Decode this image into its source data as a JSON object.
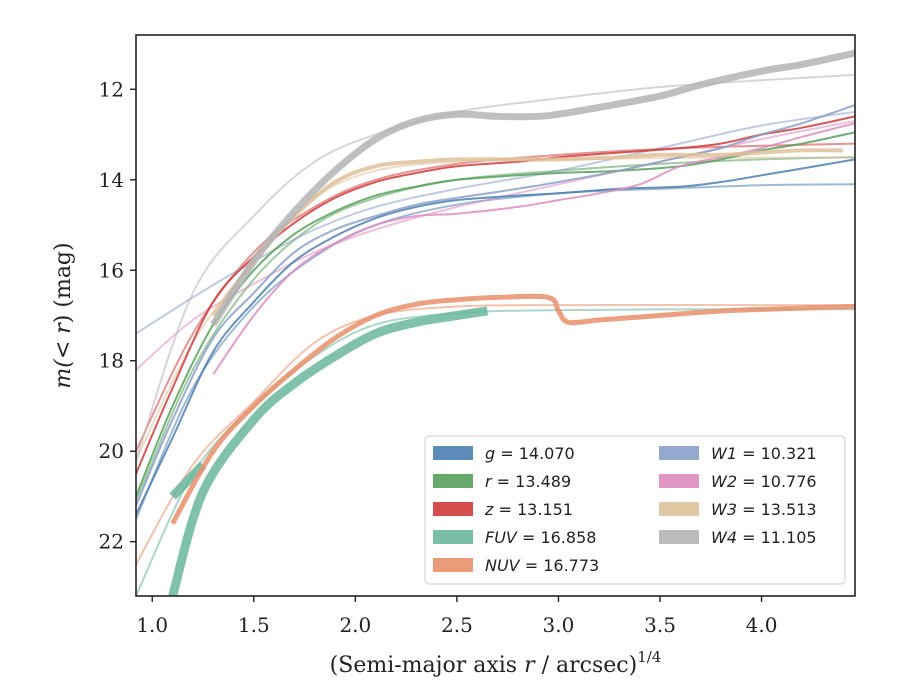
{
  "chart_data": {
    "type": "line",
    "title": "",
    "xlabel": "(Semi-major axis r / arcsec)",
    "xlabel_r": "r",
    "xlabel_pre": "(Semi-major axis ",
    "xlabel_post": " / arcsec)",
    "xlabel_sup": "1/4",
    "ylabel_pre": "m(",
    "ylabel_mid": "< r",
    "ylabel_post": ") (mag)",
    "xlim": [
      0.92,
      4.46
    ],
    "ylim": [
      23.2,
      10.8
    ],
    "y_inverted": true,
    "xticks": [
      "1.0",
      "1.5",
      "2.0",
      "2.5",
      "3.0",
      "3.5",
      "4.0"
    ],
    "xtick_values": [
      1.0,
      1.5,
      2.0,
      2.5,
      3.0,
      3.5,
      4.0
    ],
    "yticks": [
      "12",
      "14",
      "16",
      "18",
      "20",
      "22"
    ],
    "ytick_values": [
      12,
      14,
      16,
      18,
      20,
      22
    ],
    "grid": false,
    "legend_position": "lower-right",
    "series": [
      {
        "name": "g",
        "value": "14.070",
        "color": "#4c7fb0",
        "data_w": 2.0,
        "data": [
          [
            0.92,
            21.4
          ],
          [
            1.1,
            19.7
          ],
          [
            1.3,
            17.8
          ],
          [
            1.5,
            16.7
          ],
          [
            1.7,
            15.8
          ],
          [
            1.9,
            15.25
          ],
          [
            2.1,
            14.85
          ],
          [
            2.3,
            14.6
          ],
          [
            2.5,
            14.45
          ],
          [
            2.8,
            14.35
          ],
          [
            3.0,
            14.3
          ],
          [
            3.3,
            14.2
          ],
          [
            3.6,
            14.15
          ],
          [
            3.8,
            14.05
          ],
          [
            4.0,
            13.9
          ],
          [
            4.2,
            13.75
          ],
          [
            4.46,
            13.55
          ]
        ],
        "model": [
          [
            0.92,
            21.5
          ],
          [
            1.2,
            18.6
          ],
          [
            1.5,
            16.8
          ],
          [
            1.8,
            15.7
          ],
          [
            2.1,
            15.0
          ],
          [
            2.5,
            14.55
          ],
          [
            3.0,
            14.3
          ],
          [
            3.5,
            14.2
          ],
          [
            4.0,
            14.12
          ],
          [
            4.46,
            14.1
          ]
        ]
      },
      {
        "name": "r",
        "value": "13.489",
        "color": "#55a05a",
        "data_w": 2.0,
        "data": [
          [
            0.92,
            21.0
          ],
          [
            1.1,
            19.0
          ],
          [
            1.3,
            17.2
          ],
          [
            1.5,
            16.0
          ],
          [
            1.7,
            15.2
          ],
          [
            1.9,
            14.7
          ],
          [
            2.1,
            14.35
          ],
          [
            2.3,
            14.15
          ],
          [
            2.5,
            14.0
          ],
          [
            2.8,
            13.9
          ],
          [
            3.0,
            13.85
          ],
          [
            3.3,
            13.8
          ],
          [
            3.6,
            13.7
          ],
          [
            3.8,
            13.55
          ],
          [
            4.0,
            13.35
          ],
          [
            4.2,
            13.2
          ],
          [
            4.46,
            12.95
          ]
        ],
        "model": [
          [
            0.92,
            21.1
          ],
          [
            1.2,
            18.2
          ],
          [
            1.5,
            16.2
          ],
          [
            1.8,
            15.0
          ],
          [
            2.1,
            14.4
          ],
          [
            2.5,
            14.0
          ],
          [
            3.0,
            13.8
          ],
          [
            3.5,
            13.65
          ],
          [
            4.0,
            13.55
          ],
          [
            4.46,
            13.5
          ]
        ]
      },
      {
        "name": "z",
        "value": "13.151",
        "color": "#d03a3a",
        "data_w": 2.0,
        "data": [
          [
            0.92,
            20.5
          ],
          [
            1.1,
            18.6
          ],
          [
            1.3,
            16.7
          ],
          [
            1.5,
            15.7
          ],
          [
            1.7,
            14.95
          ],
          [
            1.9,
            14.4
          ],
          [
            2.1,
            14.05
          ],
          [
            2.3,
            13.85
          ],
          [
            2.5,
            13.7
          ],
          [
            2.8,
            13.6
          ],
          [
            3.0,
            13.5
          ],
          [
            3.3,
            13.4
          ],
          [
            3.6,
            13.3
          ],
          [
            3.8,
            13.2
          ],
          [
            4.0,
            13.0
          ],
          [
            4.2,
            12.85
          ],
          [
            4.46,
            12.6
          ]
        ],
        "model": [
          [
            0.92,
            20.0
          ],
          [
            1.2,
            17.4
          ],
          [
            1.5,
            15.6
          ],
          [
            1.8,
            14.6
          ],
          [
            2.1,
            14.0
          ],
          [
            2.5,
            13.65
          ],
          [
            3.0,
            13.45
          ],
          [
            3.5,
            13.32
          ],
          [
            4.0,
            13.25
          ],
          [
            4.46,
            13.2
          ]
        ]
      },
      {
        "name": "FUV",
        "value": "16.858",
        "color": "#69b69c",
        "data_w": 9,
        "data": [
          [
            1.1,
            23.2
          ],
          [
            1.25,
            20.9
          ],
          [
            1.5,
            19.3
          ],
          [
            1.7,
            18.5
          ],
          [
            1.9,
            17.9
          ],
          [
            2.1,
            17.4
          ],
          [
            2.3,
            17.15
          ],
          [
            2.5,
            17.0
          ],
          [
            2.65,
            16.9
          ]
        ],
        "band_lower": [
          [
            1.1,
            21.0
          ],
          [
            1.25,
            20.3
          ]
        ],
        "model": [
          [
            0.92,
            23.2
          ],
          [
            1.2,
            20.5
          ],
          [
            1.5,
            19.0
          ],
          [
            1.8,
            17.9
          ],
          [
            2.1,
            17.2
          ],
          [
            2.5,
            16.95
          ],
          [
            3.0,
            16.88
          ],
          [
            4.0,
            16.86
          ],
          [
            4.46,
            16.86
          ]
        ]
      },
      {
        "name": "NUV",
        "value": "16.773",
        "color": "#e8916b",
        "data_w": 5,
        "data": [
          [
            1.1,
            21.6
          ],
          [
            1.3,
            20.0
          ],
          [
            1.5,
            19.0
          ],
          [
            1.7,
            18.2
          ],
          [
            1.9,
            17.5
          ],
          [
            2.1,
            17.0
          ],
          [
            2.3,
            16.75
          ],
          [
            2.5,
            16.65
          ],
          [
            2.7,
            16.6
          ],
          [
            2.95,
            16.6
          ],
          [
            3.0,
            16.9
          ],
          [
            3.05,
            17.15
          ],
          [
            3.2,
            17.1
          ],
          [
            3.5,
            17.0
          ],
          [
            3.8,
            16.9
          ],
          [
            4.1,
            16.85
          ],
          [
            4.46,
            16.8
          ]
        ],
        "model": [
          [
            0.92,
            22.5
          ],
          [
            1.2,
            20.3
          ],
          [
            1.5,
            18.9
          ],
          [
            1.8,
            17.6
          ],
          [
            2.1,
            17.0
          ],
          [
            2.5,
            16.8
          ],
          [
            3.0,
            16.77
          ],
          [
            4.0,
            16.77
          ],
          [
            4.46,
            16.77
          ]
        ]
      },
      {
        "name": "W1",
        "value": "10.321",
        "color": "#8a9fc8",
        "data_w": 2.0,
        "data": [
          [
            0.92,
            21.2
          ],
          [
            1.1,
            19.3
          ],
          [
            1.3,
            17.5
          ],
          [
            1.5,
            16.5
          ],
          [
            1.7,
            15.6
          ],
          [
            1.9,
            15.1
          ],
          [
            2.1,
            14.8
          ],
          [
            2.3,
            14.55
          ],
          [
            2.5,
            14.4
          ],
          [
            2.8,
            14.2
          ],
          [
            3.0,
            14.05
          ],
          [
            3.3,
            13.8
          ],
          [
            3.6,
            13.5
          ],
          [
            3.8,
            13.3
          ],
          [
            4.0,
            13.0
          ],
          [
            4.2,
            12.75
          ],
          [
            4.46,
            12.35
          ]
        ],
        "model": [
          [
            0.92,
            17.4
          ],
          [
            1.2,
            16.6
          ],
          [
            1.5,
            15.8
          ],
          [
            1.8,
            15.1
          ],
          [
            2.1,
            14.6
          ],
          [
            2.5,
            14.2
          ],
          [
            3.0,
            13.8
          ],
          [
            3.5,
            13.3
          ],
          [
            4.0,
            12.8
          ],
          [
            4.46,
            12.5
          ]
        ]
      },
      {
        "name": "W2",
        "value": "10.776",
        "color": "#dd8cc0",
        "data_w": 2.0,
        "data": [
          [
            1.3,
            18.3
          ],
          [
            1.5,
            17.0
          ],
          [
            1.7,
            16.0
          ],
          [
            1.9,
            15.4
          ],
          [
            2.1,
            15.0
          ],
          [
            2.3,
            14.8
          ],
          [
            2.5,
            14.75
          ],
          [
            2.8,
            14.6
          ],
          [
            3.0,
            14.45
          ],
          [
            3.2,
            14.3
          ],
          [
            3.4,
            14.1
          ],
          [
            3.6,
            13.7
          ],
          [
            3.8,
            13.5
          ],
          [
            4.0,
            13.3
          ],
          [
            4.2,
            13.05
          ],
          [
            4.46,
            12.75
          ]
        ],
        "model": [
          [
            0.92,
            18.2
          ],
          [
            1.2,
            17.1
          ],
          [
            1.5,
            16.3
          ],
          [
            1.8,
            15.6
          ],
          [
            2.1,
            15.1
          ],
          [
            2.5,
            14.6
          ],
          [
            3.0,
            14.1
          ],
          [
            3.5,
            13.6
          ],
          [
            4.0,
            13.1
          ],
          [
            4.46,
            12.7
          ]
        ]
      },
      {
        "name": "W3",
        "value": "13.513",
        "color": "#dfc19a",
        "data_w": 4,
        "data": [
          [
            1.3,
            17.0
          ],
          [
            1.5,
            15.8
          ],
          [
            1.7,
            14.8
          ],
          [
            1.9,
            14.05
          ],
          [
            2.1,
            13.7
          ],
          [
            2.3,
            13.6
          ],
          [
            2.5,
            13.55
          ],
          [
            2.8,
            13.55
          ],
          [
            3.0,
            13.55
          ],
          [
            3.3,
            13.5
          ],
          [
            3.5,
            13.45
          ],
          [
            3.8,
            13.45
          ],
          [
            4.0,
            13.4
          ],
          [
            4.2,
            13.35
          ],
          [
            4.4,
            13.35
          ]
        ],
        "model": [
          [
            0.92,
            20.2
          ],
          [
            1.2,
            17.6
          ],
          [
            1.5,
            15.8
          ],
          [
            1.8,
            14.4
          ],
          [
            2.1,
            13.8
          ],
          [
            2.5,
            13.6
          ],
          [
            3.0,
            13.55
          ],
          [
            3.5,
            13.52
          ],
          [
            4.0,
            13.51
          ],
          [
            4.46,
            13.51
          ]
        ]
      },
      {
        "name": "W4",
        "value": "11.105",
        "color": "#b4b4b4",
        "data_w": 7,
        "data": [
          [
            1.3,
            17.2
          ],
          [
            1.5,
            15.8
          ],
          [
            1.7,
            14.7
          ],
          [
            1.9,
            13.8
          ],
          [
            2.1,
            13.1
          ],
          [
            2.3,
            12.7
          ],
          [
            2.5,
            12.55
          ],
          [
            2.7,
            12.6
          ],
          [
            2.9,
            12.6
          ],
          [
            3.0,
            12.55
          ],
          [
            3.2,
            12.4
          ],
          [
            3.5,
            12.15
          ],
          [
            3.7,
            11.9
          ],
          [
            4.0,
            11.6
          ],
          [
            4.2,
            11.45
          ],
          [
            4.46,
            11.2
          ]
        ],
        "model": [
          [
            0.92,
            20.2
          ],
          [
            1.2,
            16.5
          ],
          [
            1.5,
            14.8
          ],
          [
            1.8,
            13.6
          ],
          [
            2.1,
            13.0
          ],
          [
            2.5,
            12.5
          ],
          [
            3.0,
            12.2
          ],
          [
            3.5,
            11.95
          ],
          [
            4.0,
            11.8
          ],
          [
            4.46,
            11.68
          ]
        ]
      }
    ]
  }
}
